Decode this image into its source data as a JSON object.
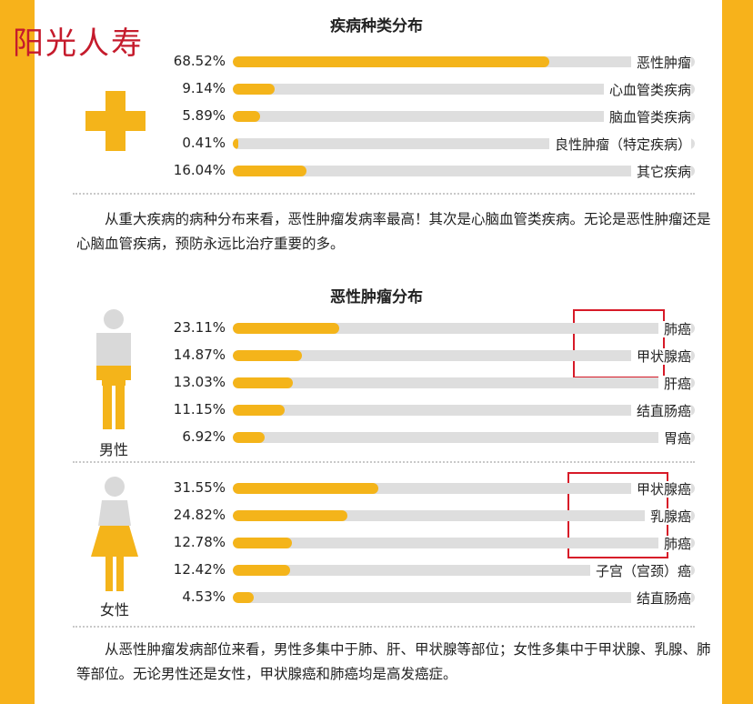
{
  "watermark": "阳光人寿",
  "chart_data": [
    {
      "type": "bar",
      "title": "疾病种类分布",
      "categories": [
        "恶性肿瘤",
        "心血管类疾病",
        "脑血管类疾病",
        "良性肿瘤（特定疾病）",
        "其它疾病"
      ],
      "values": [
        68.52,
        9.14,
        5.89,
        0.41,
        16.04
      ],
      "value_labels": [
        "68.52%",
        "9.14%",
        "5.89%",
        "0.41%",
        "16.04%"
      ],
      "xlim": [
        0,
        100
      ]
    },
    {
      "type": "bar",
      "title": "恶性肿瘤分布",
      "groups": [
        {
          "name": "男性",
          "categories": [
            "肺癌",
            "甲状腺癌",
            "肝癌",
            "结直肠癌",
            "胃癌"
          ],
          "values": [
            23.11,
            14.87,
            13.03,
            11.15,
            6.92
          ],
          "value_labels": [
            "23.11%",
            "14.87%",
            "13.03%",
            "11.15%",
            "6.92%"
          ]
        },
        {
          "name": "女性",
          "categories": [
            "甲状腺癌",
            "乳腺癌",
            "肺癌",
            "子宫（宫颈）癌",
            "结直肠癌"
          ],
          "values": [
            31.55,
            24.82,
            12.78,
            12.42,
            4.53
          ],
          "value_labels": [
            "31.55%",
            "24.82%",
            "12.78%",
            "12.42%",
            "4.53%"
          ]
        }
      ],
      "xlim": [
        0,
        100
      ]
    }
  ],
  "paragraphs": {
    "disease": "从重大疾病的病种分布来看，恶性肿瘤发病率最高！其次是心脑血管类疾病。无论是恶性肿瘤还是心脑血管疾病，预防永远比治疗重要的多。",
    "cancer": "从恶性肿瘤发病部位来看，男性多集中于肺、肝、甲状腺等部位；女性多集中于甲状腺、乳腺、肺等部位。无论男性还是女性，甲状腺癌和肺癌均是高发癌症。"
  },
  "colors": {
    "accent": "#f4b41a",
    "track": "#dedede",
    "highlight_box": "#d71a28",
    "side_band": "#f7b21b"
  },
  "icons": {
    "cross": "plus-cross-icon",
    "male": "male-figure-icon",
    "female": "female-figure-icon"
  }
}
